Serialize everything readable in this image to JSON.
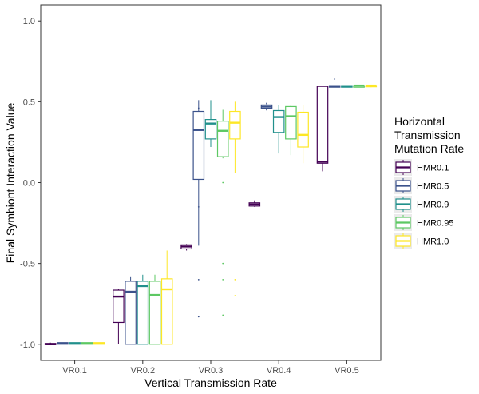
{
  "chart_data": {
    "type": "boxplot",
    "xlabel": "Vertical Transmission Rate",
    "ylabel": "Final Symbiont Interaction Value",
    "ylim": [
      -1.1,
      1.1
    ],
    "yticks": [
      1.0,
      0.5,
      0.0,
      -0.5,
      -1.0
    ],
    "ytick_labels": [
      "1.0",
      "0.5",
      "0.0",
      "-0.5",
      "-1.0"
    ],
    "categories": [
      "VR0.1",
      "VR0.2",
      "VR0.3",
      "VR0.4",
      "VR0.5"
    ],
    "grid": false,
    "legend": {
      "title_lines": [
        "Horizontal",
        "Transmission",
        "Mutation Rate"
      ],
      "placement": "right"
    },
    "series": [
      {
        "name": "HMR0.1",
        "color": "#440154",
        "boxes": [
          {
            "min": -1.0,
            "q1": -1.0,
            "median": -1.0,
            "q3": -0.995,
            "max": -0.99,
            "outliers": []
          },
          {
            "min": -1.0,
            "q1": -0.865,
            "median": -0.705,
            "q3": -0.665,
            "max": -0.66,
            "outliers": []
          },
          {
            "min": -0.42,
            "q1": -0.41,
            "median": -0.395,
            "q3": -0.385,
            "max": -0.38,
            "outliers": []
          },
          {
            "min": -0.15,
            "q1": -0.145,
            "median": -0.135,
            "q3": -0.125,
            "max": -0.11,
            "outliers": []
          },
          {
            "min": 0.07,
            "q1": 0.12,
            "median": 0.13,
            "q3": 0.595,
            "max": 0.6,
            "outliers": []
          }
        ]
      },
      {
        "name": "HMR0.5",
        "color": "#3B528B",
        "boxes": [
          {
            "min": -1.0,
            "q1": -1.0,
            "median": -0.995,
            "q3": -0.99,
            "max": -0.99,
            "outliers": []
          },
          {
            "min": -1.0,
            "q1": -1.0,
            "median": -0.675,
            "q3": -0.61,
            "max": -0.58,
            "outliers": []
          },
          {
            "min": -0.39,
            "q1": 0.02,
            "median": 0.325,
            "q3": 0.44,
            "max": 0.51,
            "outliers": [
              0.46,
              -0.15,
              -0.6,
              -0.83
            ]
          },
          {
            "min": 0.46,
            "q1": 0.46,
            "median": 0.47,
            "q3": 0.48,
            "max": 0.49,
            "outliers": [
              0.49,
              0.45
            ]
          },
          {
            "min": 0.59,
            "q1": 0.59,
            "median": 0.595,
            "q3": 0.6,
            "max": 0.6,
            "outliers": [
              0.64
            ]
          }
        ]
      },
      {
        "name": "HMR0.9",
        "color": "#21908C",
        "boxes": [
          {
            "min": -1.0,
            "q1": -1.0,
            "median": -0.995,
            "q3": -0.99,
            "max": -0.99,
            "outliers": []
          },
          {
            "min": -1.0,
            "q1": -1.0,
            "median": -0.64,
            "q3": -0.61,
            "max": -0.57,
            "outliers": []
          },
          {
            "min": 0.22,
            "q1": 0.27,
            "median": 0.365,
            "q3": 0.39,
            "max": 0.51,
            "outliers": []
          },
          {
            "min": 0.18,
            "q1": 0.31,
            "median": 0.405,
            "q3": 0.445,
            "max": 0.48,
            "outliers": []
          },
          {
            "min": 0.59,
            "q1": 0.59,
            "median": 0.595,
            "q3": 0.6,
            "max": 0.6,
            "outliers": []
          }
        ]
      },
      {
        "name": "HMR0.95",
        "color": "#5DC863",
        "boxes": [
          {
            "min": -1.0,
            "q1": -1.0,
            "median": -0.995,
            "q3": -0.99,
            "max": -0.99,
            "outliers": []
          },
          {
            "min": -1.0,
            "q1": -1.0,
            "median": -0.695,
            "q3": -0.61,
            "max": -0.57,
            "outliers": []
          },
          {
            "min": 0.15,
            "q1": 0.16,
            "median": 0.32,
            "q3": 0.38,
            "max": 0.45,
            "outliers": [
              0.0,
              -0.5,
              -0.6,
              -0.82
            ]
          },
          {
            "min": 0.17,
            "q1": 0.27,
            "median": 0.41,
            "q3": 0.47,
            "max": 0.48,
            "outliers": []
          },
          {
            "min": 0.59,
            "q1": 0.59,
            "median": 0.6,
            "q3": 0.6,
            "max": 0.6,
            "outliers": []
          }
        ]
      },
      {
        "name": "HMR1.0",
        "color": "#FDE725",
        "boxes": [
          {
            "min": -1.0,
            "q1": -1.0,
            "median": -0.995,
            "q3": -0.99,
            "max": -0.99,
            "outliers": []
          },
          {
            "min": -1.0,
            "q1": -1.0,
            "median": -0.66,
            "q3": -0.595,
            "max": -0.42,
            "outliers": []
          },
          {
            "min": 0.06,
            "q1": 0.27,
            "median": 0.37,
            "q3": 0.44,
            "max": 0.5,
            "outliers": [
              -0.6,
              -0.7
            ]
          },
          {
            "min": 0.12,
            "q1": 0.22,
            "median": 0.295,
            "q3": 0.435,
            "max": 0.48,
            "outliers": []
          },
          {
            "min": 0.59,
            "q1": 0.595,
            "median": 0.6,
            "q3": 0.6,
            "max": 0.6,
            "outliers": []
          }
        ]
      }
    ]
  }
}
